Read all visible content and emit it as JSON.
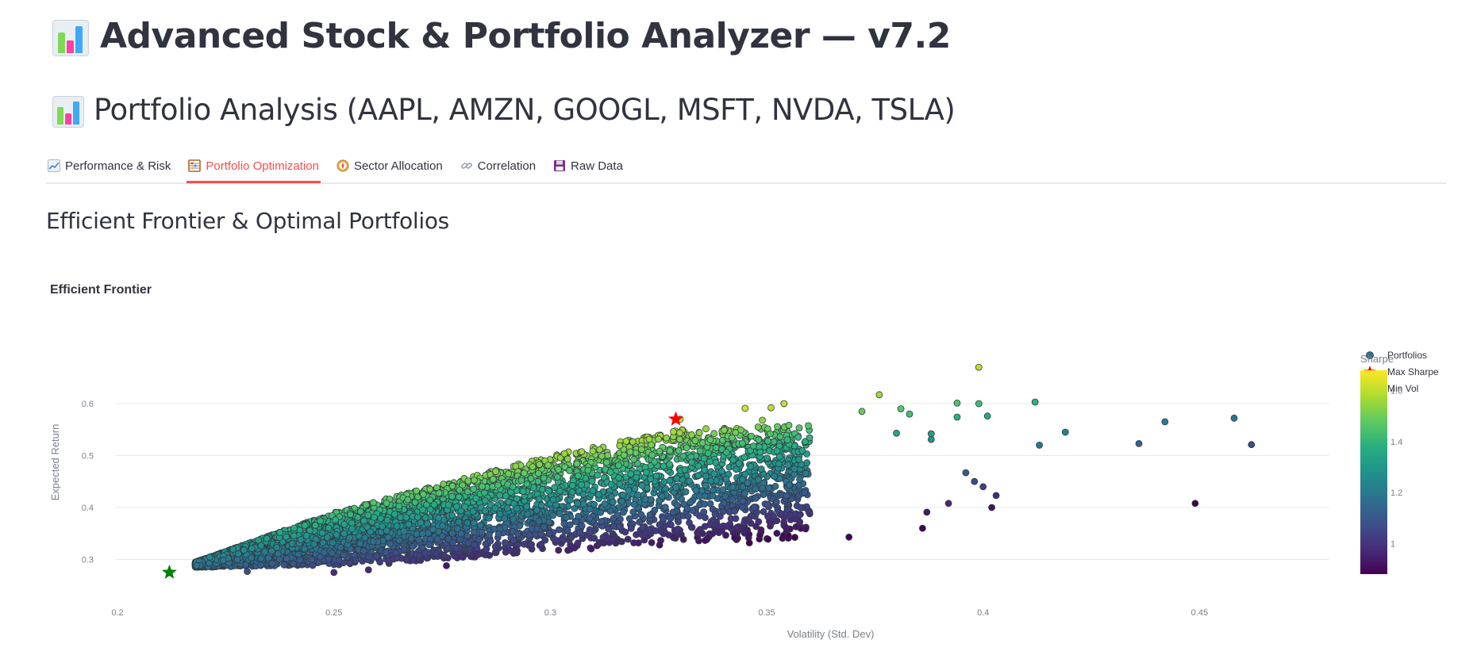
{
  "app": {
    "title": "Advanced Stock & Portfolio Analyzer — v7.2",
    "icon": "bar-chart-emoji-icon"
  },
  "page": {
    "title": "Portfolio Analysis (AAPL, AMZN, GOOGL, MSFT, NVDA, TSLA)",
    "icon": "bar-chart-emoji-icon"
  },
  "tabs": [
    {
      "label": "Performance & Risk",
      "icon": "chart-increasing-icon",
      "active": false
    },
    {
      "label": "Portfolio Optimization",
      "icon": "abacus-icon",
      "active": true
    },
    {
      "label": "Sector Allocation",
      "icon": "compass-icon",
      "active": false
    },
    {
      "label": "Correlation",
      "icon": "link-icon",
      "active": false
    },
    {
      "label": "Raw Data",
      "icon": "floppy-disk-icon",
      "active": false
    }
  ],
  "section": {
    "title": "Efficient Frontier & Optimal Portfolios"
  },
  "chart_data": {
    "type": "scatter",
    "title": "Efficient Frontier",
    "xlabel": "Volatility (Std. Dev)",
    "ylabel": "Expected Return",
    "xlim": [
      0.2,
      0.48
    ],
    "ylim": [
      0.255,
      0.69
    ],
    "xticks": [
      "0.2",
      "0.25",
      "0.3",
      "0.35",
      "0.4",
      "0.45"
    ],
    "yticks": [
      "0.3",
      "0.4",
      "0.5",
      "0.6"
    ],
    "grid": true,
    "legend_position": "top-right",
    "colorscale": "Viridis",
    "colorbar": {
      "title": "Sharpe",
      "range": [
        0.88,
        1.68
      ],
      "ticks": [
        "1",
        "1.2",
        "1.4",
        "1.6"
      ]
    },
    "series": [
      {
        "name": "Portfolios",
        "marker": "circle",
        "cloud": {
          "points": 5000,
          "vol_range": [
            0.218,
            0.36
          ],
          "lower_return_at": [
            [
              0.218,
              0.285
            ],
            [
              0.26,
              0.29
            ],
            [
              0.3,
              0.315
            ],
            [
              0.33,
              0.33
            ],
            [
              0.36,
              0.34
            ]
          ],
          "upper_return_at": [
            [
              0.218,
              0.295
            ],
            [
              0.25,
              0.39
            ],
            [
              0.3,
              0.5
            ],
            [
              0.33,
              0.55
            ],
            [
              0.36,
              0.56
            ]
          ]
        },
        "outliers": [
          [
            0.399,
            0.67
          ],
          [
            0.412,
            0.603
          ],
          [
            0.419,
            0.545
          ],
          [
            0.436,
            0.523
          ],
          [
            0.442,
            0.565
          ],
          [
            0.458,
            0.572
          ],
          [
            0.462,
            0.521
          ],
          [
            0.413,
            0.52
          ],
          [
            0.394,
            0.601
          ],
          [
            0.399,
            0.6
          ],
          [
            0.401,
            0.576
          ],
          [
            0.394,
            0.574
          ],
          [
            0.449,
            0.408
          ],
          [
            0.386,
            0.36
          ],
          [
            0.376,
            0.617
          ],
          [
            0.372,
            0.585
          ],
          [
            0.369,
            0.343
          ],
          [
            0.402,
            0.4
          ],
          [
            0.403,
            0.423
          ],
          [
            0.392,
            0.408
          ],
          [
            0.388,
            0.531
          ],
          [
            0.388,
            0.542
          ],
          [
            0.383,
            0.58
          ],
          [
            0.38,
            0.543
          ],
          [
            0.351,
            0.592
          ],
          [
            0.349,
            0.568
          ],
          [
            0.355,
            0.346
          ],
          [
            0.33,
            0.57
          ],
          [
            0.345,
            0.591
          ],
          [
            0.354,
            0.6
          ],
          [
            0.381,
            0.59
          ],
          [
            0.398,
            0.45
          ],
          [
            0.396,
            0.467
          ],
          [
            0.4,
            0.44
          ],
          [
            0.387,
            0.391
          ],
          [
            0.346,
            0.332
          ],
          [
            0.355,
            0.345
          ],
          [
            0.25,
            0.275
          ],
          [
            0.258,
            0.28
          ],
          [
            0.276,
            0.288
          ],
          [
            0.23,
            0.277
          ]
        ]
      },
      {
        "name": "Max Sharpe",
        "marker": "star",
        "color": "#ff0000",
        "point": [
          0.329,
          0.57
        ]
      },
      {
        "name": "Min Vol",
        "marker": "star",
        "color": "#008000",
        "point": [
          0.212,
          0.275
        ]
      }
    ]
  },
  "colors": {
    "accent": "#ff4b4b",
    "text": "#31333f",
    "grid": "#e6e8ec",
    "axis_text": "#7a7f89"
  }
}
